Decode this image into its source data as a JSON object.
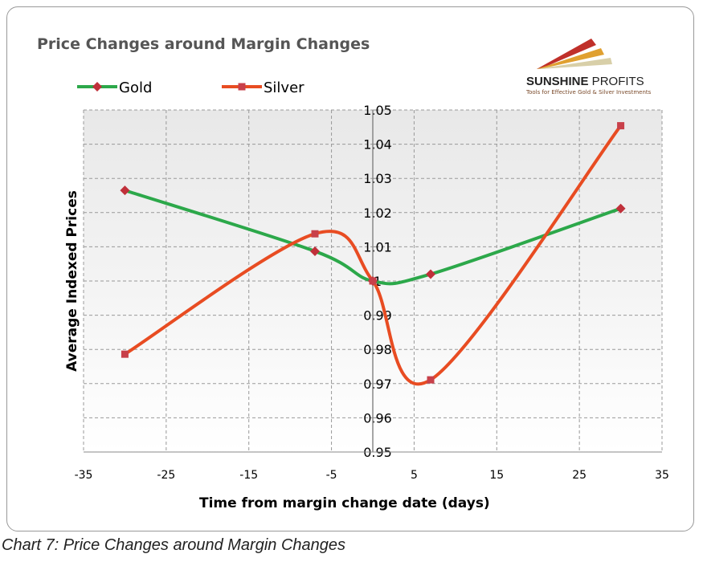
{
  "chart_data": {
    "type": "line",
    "title": "Price Changes around Margin Changes",
    "xlabel": "Time from margin change date (days)",
    "ylabel": "Average Indexed Prices",
    "xlim": [
      -35,
      35
    ],
    "ylim": [
      0.95,
      1.05
    ],
    "xticks": [
      -35,
      -25,
      -15,
      -5,
      5,
      15,
      25,
      35
    ],
    "yticks": [
      0.95,
      0.96,
      0.97,
      0.98,
      0.99,
      1,
      1.01,
      1.02,
      1.03,
      1.04,
      1.05
    ],
    "xtick_labels": [
      "-35",
      "-25",
      "-15",
      "-5",
      "5",
      "15",
      "25",
      "35"
    ],
    "ytick_labels": [
      "0.95",
      "0.96",
      "0.97",
      "0.98",
      "0.99",
      "1",
      "1.01",
      "1.02",
      "1.03",
      "1.04",
      "1.05"
    ],
    "grid": true,
    "smoothed": true,
    "legend": "top-left",
    "series": [
      {
        "name": "Gold",
        "color": "#2ca84a",
        "marker_color": "#c0303a",
        "marker": "diamond",
        "x": [
          -30,
          -7,
          0,
          7,
          30
        ],
        "y": [
          1.0265,
          1.0087,
          1.0,
          1.002,
          1.0212
        ]
      },
      {
        "name": "Silver",
        "color": "#e84c22",
        "marker_color": "#c8404a",
        "marker": "square",
        "x": [
          -30,
          -7,
          0,
          7,
          30
        ],
        "y": [
          0.9786,
          1.0138,
          1.0,
          0.9711,
          1.0454
        ]
      }
    ]
  },
  "logo": {
    "name_bold": "SUNSHINE",
    "name_regular": " PROFITS",
    "tagline": "Tools for Effective Gold & Silver Investments"
  },
  "caption": "Chart 7: Price Changes around Margin Changes"
}
